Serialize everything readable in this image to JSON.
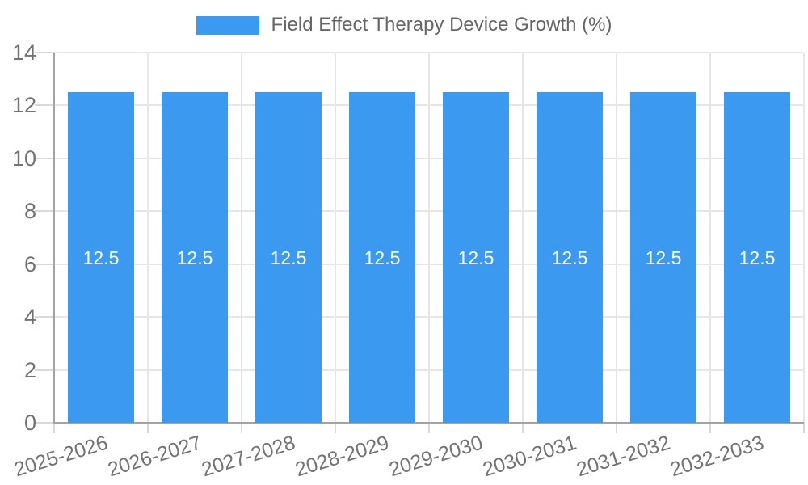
{
  "chart_data": {
    "type": "bar",
    "title": "Field Effect Therapy Device Growth (%)",
    "categories": [
      "2025-2026",
      "2026-2027",
      "2027-2028",
      "2028-2029",
      "2029-2030",
      "2030-2031",
      "2031-2032",
      "2032-2033"
    ],
    "values": [
      12.5,
      12.5,
      12.5,
      12.5,
      12.5,
      12.5,
      12.5,
      12.5
    ],
    "bar_value_labels": [
      "12.5",
      "12.5",
      "12.5",
      "12.5",
      "12.5",
      "12.5",
      "12.5",
      "12.5"
    ],
    "xlabel": "",
    "ylabel": "",
    "ylim": [
      0,
      14
    ],
    "ytick_step": 2,
    "ytick_labels": [
      "0",
      "2",
      "4",
      "6",
      "8",
      "10",
      "12",
      "14"
    ],
    "grid": true,
    "legend_position": "top-center",
    "colors": {
      "bar": "#3b99f0",
      "bar_label_text": "#ffffff",
      "grid": "#e6e6e6",
      "axis": "#a3a3a3",
      "tick_mark": "#d9d9d9",
      "tick_label_text": "#737373",
      "legend_text": "#666666",
      "background": "#ffffff"
    }
  }
}
